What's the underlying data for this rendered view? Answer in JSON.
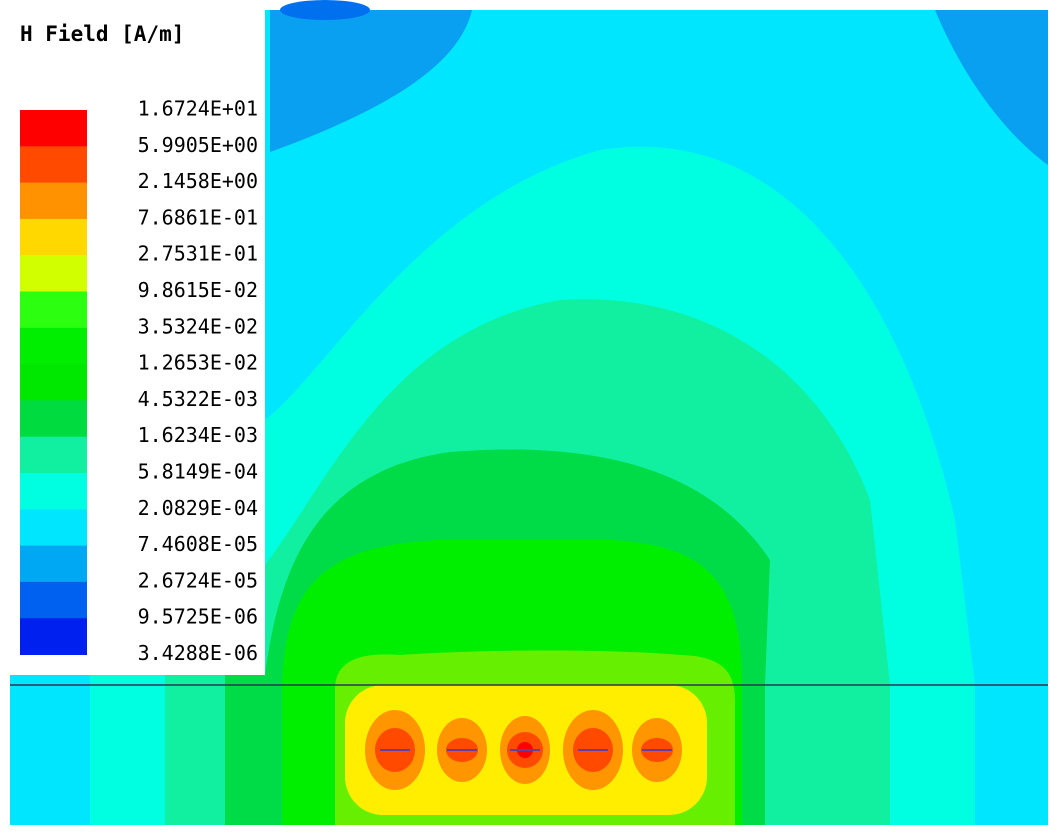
{
  "legend": {
    "title": "H Field [A/m]",
    "labels": [
      "1.6724E+01",
      "5.9905E+00",
      "2.1458E+00",
      "7.6861E-01",
      "2.7531E-01",
      "9.8615E-02",
      "3.5324E-02",
      "1.2653E-02",
      "4.5322E-03",
      "1.6234E-03",
      "5.8149E-04",
      "2.0829E-04",
      "7.4608E-05",
      "2.6724E-05",
      "9.5725E-06",
      "3.4288E-06"
    ],
    "colors": [
      "#ff0000",
      "#ff4a00",
      "#ff9200",
      "#ffd800",
      "#d2ff00",
      "#2cff10",
      "#00ee00",
      "#00e800",
      "#00dc40",
      "#10f0a0",
      "#00ffe0",
      "#00e6ff",
      "#00a8f4",
      "#0060f0",
      "#0020f0"
    ]
  }
}
